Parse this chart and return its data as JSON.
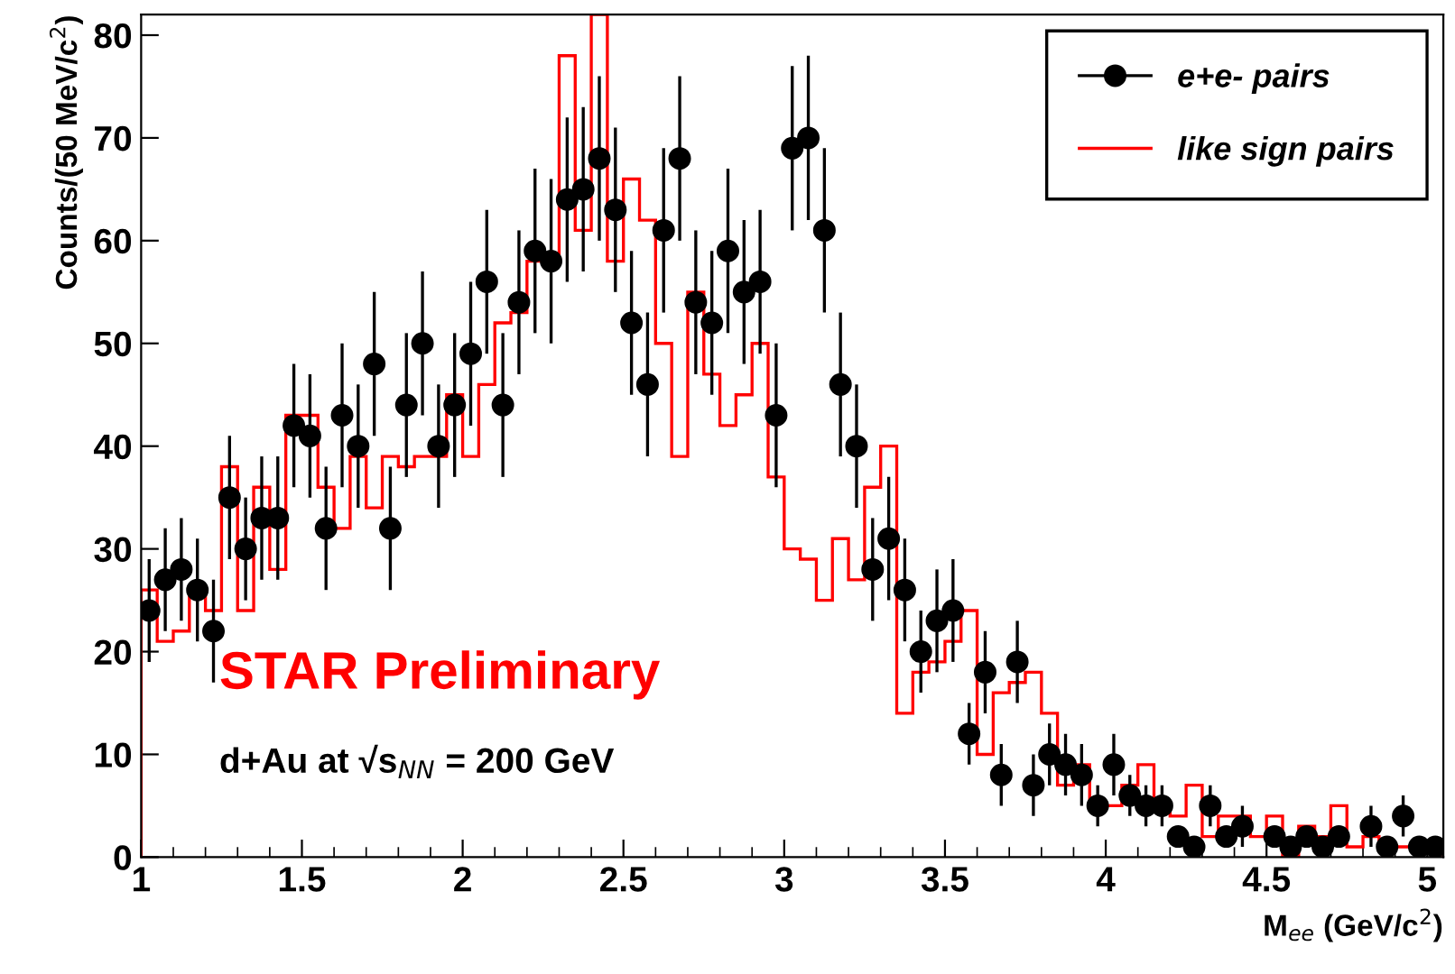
{
  "chart_data": {
    "type": "scatter",
    "xlabel": "M$_{ee}$ (GeV/c$^{2}$)",
    "ylabel": "Counts/(50 MeV/c$^{2}$)",
    "xlim": [
      1,
      5.05
    ],
    "ylim": [
      0,
      82
    ],
    "xticks": [
      1,
      1.5,
      2,
      2.5,
      3,
      3.5,
      4,
      4.5,
      5
    ],
    "yticks": [
      0,
      10,
      20,
      30,
      40,
      50,
      60,
      70,
      80
    ],
    "grid": false,
    "legend": "top right",
    "marker": "circle",
    "annotations": [
      "STAR Preliminary",
      "d+Au at √s$_{NN}$ = 200 GeV"
    ],
    "series": [
      {
        "name": "e+e- pairs",
        "color": "#000000",
        "x": [
          1.025,
          1.075,
          1.125,
          1.175,
          1.225,
          1.275,
          1.325,
          1.375,
          1.425,
          1.475,
          1.525,
          1.575,
          1.625,
          1.675,
          1.725,
          1.775,
          1.825,
          1.875,
          1.925,
          1.975,
          2.025,
          2.075,
          2.125,
          2.175,
          2.225,
          2.275,
          2.325,
          2.375,
          2.425,
          2.475,
          2.525,
          2.575,
          2.625,
          2.675,
          2.725,
          2.775,
          2.825,
          2.875,
          2.925,
          2.975,
          3.025,
          3.075,
          3.125,
          3.175,
          3.225,
          3.275,
          3.325,
          3.375,
          3.425,
          3.475,
          3.525,
          3.575,
          3.625,
          3.675,
          3.725,
          3.775,
          3.825,
          3.875,
          3.925,
          3.975,
          4.025,
          4.075,
          4.125,
          4.175,
          4.225,
          4.275,
          4.325,
          4.375,
          4.425,
          4.475,
          4.525,
          4.575,
          4.625,
          4.675,
          4.725,
          4.775,
          4.825,
          4.875,
          4.925,
          4.975,
          5.025
        ],
        "values": [
          24,
          27,
          28,
          26,
          22,
          35,
          30,
          33,
          33,
          42,
          41,
          32,
          43,
          40,
          48,
          32,
          44,
          50,
          40,
          44,
          49,
          56,
          44,
          54,
          59,
          58,
          64,
          65,
          68,
          63,
          52,
          46,
          61,
          68,
          54,
          52,
          59,
          55,
          56,
          43,
          69,
          70,
          61,
          46,
          40,
          28,
          31,
          26,
          20,
          23,
          24,
          12,
          18,
          8,
          19,
          7,
          10,
          9,
          8,
          5,
          9,
          6,
          5,
          5,
          2,
          1,
          5,
          2,
          3,
          null,
          2,
          1,
          2,
          1,
          2,
          null,
          3,
          1,
          4,
          1,
          1
        ],
        "errors": [
          5,
          5,
          5,
          5,
          5,
          6,
          5,
          6,
          6,
          6,
          6,
          6,
          7,
          6,
          7,
          6,
          7,
          7,
          6,
          7,
          7,
          7,
          7,
          7,
          8,
          8,
          8,
          8,
          8,
          8,
          7,
          7,
          8,
          8,
          7,
          7,
          8,
          7,
          7,
          7,
          8,
          8,
          8,
          7,
          6,
          5,
          6,
          5,
          4,
          5,
          5,
          3,
          4,
          3,
          4,
          3,
          3,
          3,
          3,
          2,
          3,
          2,
          2,
          2,
          1,
          1,
          2,
          1,
          2,
          null,
          1,
          1,
          1,
          1,
          1,
          null,
          2,
          1,
          2,
          1,
          1
        ]
      },
      {
        "name": "like sign pairs",
        "type": "histogram",
        "color": "#ff0000",
        "bins": [
          1.0,
          1.05,
          1.1,
          1.15,
          1.2,
          1.25,
          1.3,
          1.35,
          1.4,
          1.45,
          1.5,
          1.55,
          1.6,
          1.65,
          1.7,
          1.75,
          1.8,
          1.85,
          1.9,
          1.95,
          2.0,
          2.05,
          2.1,
          2.15,
          2.2,
          2.25,
          2.3,
          2.35,
          2.4,
          2.45,
          2.5,
          2.55,
          2.6,
          2.65,
          2.7,
          2.75,
          2.8,
          2.85,
          2.9,
          2.95,
          3.0,
          3.05,
          3.1,
          3.15,
          3.2,
          3.25,
          3.3,
          3.35,
          3.4,
          3.45,
          3.5,
          3.55,
          3.6,
          3.65,
          3.7,
          3.75,
          3.8,
          3.85,
          3.9,
          3.95,
          4.0,
          4.05,
          4.1,
          4.15,
          4.2,
          4.25,
          4.3,
          4.35,
          4.4,
          4.45,
          4.5,
          4.55,
          4.6,
          4.65,
          4.7,
          4.75,
          4.8,
          4.85,
          4.9,
          4.95,
          5.0,
          5.05
        ],
        "values": [
          26,
          21,
          22,
          26,
          24,
          38,
          24,
          36,
          28,
          43,
          43,
          36,
          32,
          39,
          34,
          39,
          38,
          39,
          39,
          45,
          39,
          46,
          52,
          53,
          58,
          58,
          78,
          61,
          82,
          58,
          66,
          62,
          50,
          39,
          55,
          47,
          42,
          45,
          50,
          37,
          30,
          29,
          25,
          31,
          27,
          36,
          40,
          14,
          18,
          19,
          21,
          24,
          10,
          16,
          17,
          18,
          14,
          7,
          9,
          5,
          5,
          7,
          9,
          5,
          4,
          7,
          2,
          4,
          4,
          2,
          4,
          0,
          3,
          2,
          5,
          1,
          2,
          1,
          1,
          1,
          1
        ]
      }
    ]
  }
}
